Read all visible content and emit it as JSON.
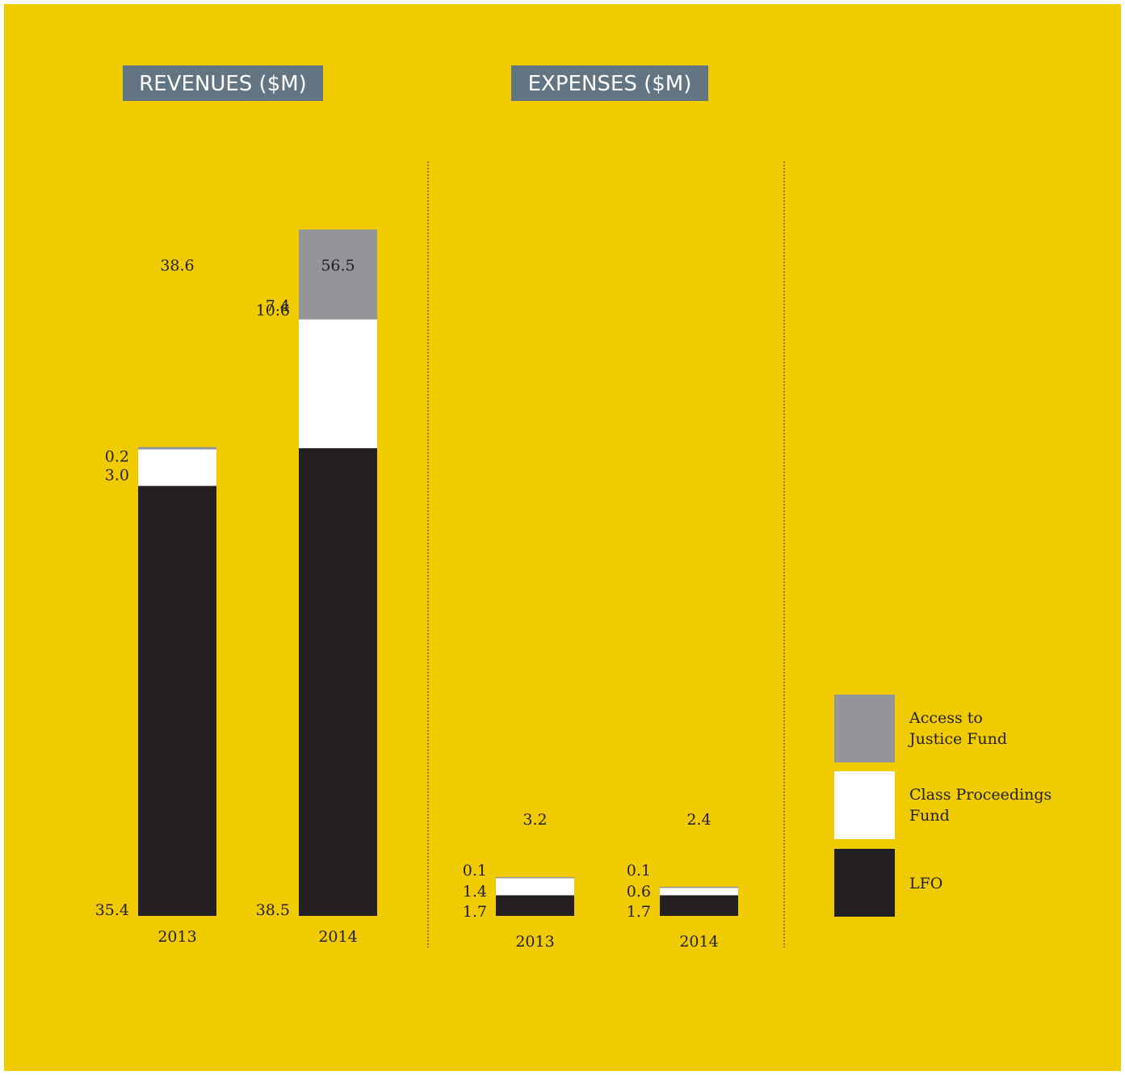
{
  "chart_data": [
    {
      "type": "bar",
      "stacked": true,
      "title": "REVENUES ($M)",
      "categories": [
        "2013",
        "2014"
      ],
      "totals": [
        "38.6",
        "56.5"
      ],
      "series": [
        {
          "name": "LFO",
          "values": [
            35.4,
            38.5
          ],
          "labels": [
            "35.4",
            "38.5"
          ]
        },
        {
          "name": "Class Proceedings Fund",
          "values": [
            3.0,
            10.6
          ],
          "labels": [
            "3.0",
            "10.6"
          ]
        },
        {
          "name": "Access to Justice Fund",
          "values": [
            0.2,
            7.4
          ],
          "labels": [
            "0.2",
            "7.4"
          ]
        }
      ]
    },
    {
      "type": "bar",
      "stacked": true,
      "title": "EXPENSES ($M)",
      "categories": [
        "2013",
        "2014"
      ],
      "totals": [
        "3.2",
        "2.4"
      ],
      "series": [
        {
          "name": "LFO",
          "values": [
            1.7,
            1.7
          ],
          "labels": [
            "1.7",
            "1.7"
          ]
        },
        {
          "name": "Class Proceedings Fund",
          "values": [
            1.4,
            0.6
          ],
          "labels": [
            "1.4",
            "0.6"
          ]
        },
        {
          "name": "Access to Justice Fund",
          "values": [
            0.1,
            0.1
          ],
          "labels": [
            "0.1",
            "0.1"
          ]
        }
      ]
    }
  ],
  "legend": [
    {
      "lines": [
        "Access to",
        "Justice Fund"
      ],
      "color": "#939598"
    },
    {
      "lines": [
        "Class Proceedings",
        "Fund"
      ],
      "color": "#FFFFFF"
    },
    {
      "lines": [
        "LFO"
      ],
      "color": "#231F20"
    }
  ],
  "colors": {
    "background": "#EFCB00",
    "title_box": "#637582",
    "lfo": "#231F20",
    "class_proceedings": "#FFFFFF",
    "access_to_justice": "#939598",
    "text": "#231F20",
    "divider": "#231F20"
  }
}
